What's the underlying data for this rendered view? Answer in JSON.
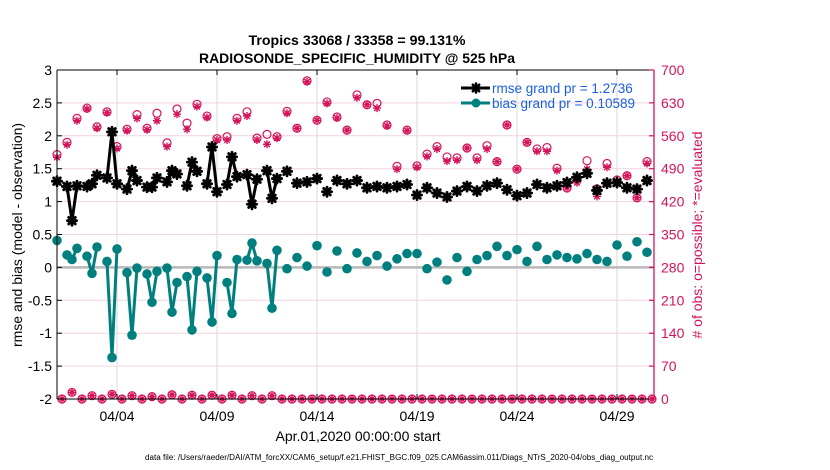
{
  "chart_data": {
    "type": "line",
    "title": [
      "Tropics 33068 / 33358 = 99.131%",
      "RADIOSONDE_SPECIFIC_HUMIDITY @ 525 hPa"
    ],
    "xlabel": "Apr.01,2020 00:00:00 start",
    "ylabel_left": "rmse and bias (model - observation)",
    "ylabel_right": "# of obs: o=possible; *=evaluated",
    "footer": "data file: /Users/raeder/DAI/ATM_forcXX/CAM6_setup/f.e21.FHIST_BGC.f09_025.CAM6assim.011/Diags_NTrS_2020-04/obs_diag_output.nc",
    "x_units": "days since Apr.01,2020 00:00:00",
    "xlim": [
      0,
      29.85
    ],
    "ylim_left": [
      -2,
      3
    ],
    "ylim_right": [
      0,
      700
    ],
    "grid": true,
    "zero_line": 0,
    "legend_position": "top-right",
    "x_ticks": [
      {
        "value": 3,
        "label": "04/04"
      },
      {
        "value": 8,
        "label": "04/09"
      },
      {
        "value": 13,
        "label": "04/14"
      },
      {
        "value": 18,
        "label": "04/19"
      },
      {
        "value": 23,
        "label": "04/24"
      },
      {
        "value": 28,
        "label": "04/29"
      }
    ],
    "y_ticks_left": [
      {
        "value": 3,
        "label": "3"
      },
      {
        "value": 2.5,
        "label": "2.5"
      },
      {
        "value": 2,
        "label": "2"
      },
      {
        "value": 1.5,
        "label": "1.5"
      },
      {
        "value": 1,
        "label": "1"
      },
      {
        "value": 0.5,
        "label": "0.5"
      },
      {
        "value": 0,
        "label": "0"
      },
      {
        "value": -0.5,
        "label": "-0.5"
      },
      {
        "value": -1,
        "label": "-1"
      },
      {
        "value": -1.5,
        "label": "-1.5"
      },
      {
        "value": -2,
        "label": "-2"
      }
    ],
    "y_ticks_right": [
      {
        "value": 700,
        "label": "700"
      },
      {
        "value": 630,
        "label": "630"
      },
      {
        "value": 560,
        "label": "560"
      },
      {
        "value": 490,
        "label": "490"
      },
      {
        "value": 420,
        "label": "420"
      },
      {
        "value": 350,
        "label": "350"
      },
      {
        "value": 280,
        "label": "280"
      },
      {
        "value": 210,
        "label": "210"
      },
      {
        "value": 140,
        "label": "140"
      },
      {
        "value": 70,
        "label": "70"
      },
      {
        "value": 0,
        "label": "0"
      }
    ],
    "x": [
      0,
      0.25,
      0.5,
      0.75,
      1,
      1.25,
      1.5,
      1.75,
      2,
      2.25,
      2.5,
      2.75,
      3,
      3.25,
      3.5,
      3.75,
      4,
      4.25,
      4.5,
      4.75,
      5,
      5.25,
      5.5,
      5.75,
      6,
      6.25,
      6.5,
      6.75,
      7,
      7.25,
      7.5,
      7.75,
      8,
      8.25,
      8.5,
      8.75,
      9,
      9.25,
      9.5,
      9.75,
      10,
      10.25,
      10.5,
      10.75,
      11,
      11.25,
      11.5,
      11.75,
      12,
      12.25,
      12.5,
      12.75,
      13,
      13.25,
      13.5,
      13.75,
      14,
      14.25,
      14.5,
      14.75,
      15,
      15.25,
      15.5,
      15.75,
      16,
      16.25,
      16.5,
      16.75,
      17,
      17.25,
      17.5,
      17.75,
      18,
      18.25,
      18.5,
      18.75,
      19,
      19.25,
      19.5,
      19.75,
      20,
      20.25,
      20.5,
      20.75,
      21,
      21.25,
      21.5,
      21.75,
      22,
      22.25,
      22.5,
      22.75,
      23,
      23.25,
      23.5,
      23.75,
      24,
      24.25,
      24.5,
      24.75,
      25,
      25.25,
      25.5,
      25.75,
      26,
      26.25,
      26.5,
      26.75,
      27,
      27.25,
      27.5,
      27.75,
      28,
      28.25,
      28.5,
      28.75,
      29,
      29.25,
      29.5,
      29.75
    ],
    "series": [
      {
        "name": "rmse grand pr = 1.2736",
        "axis": "left",
        "color": "#000000",
        "marker": "asterisk",
        "in_legend": true,
        "values": [
          1.31,
          null,
          1.23,
          0.71,
          1.24,
          null,
          1.23,
          1.27,
          1.4,
          null,
          1.36,
          2.06,
          1.27,
          null,
          1.19,
          1.47,
          1.32,
          null,
          1.22,
          1.22,
          1.36,
          null,
          1.3,
          1.47,
          1.42,
          null,
          1.24,
          1.6,
          1.46,
          null,
          1.27,
          1.83,
          1.15,
          null,
          1.26,
          1.68,
          1.38,
          null,
          1.41,
          0.96,
          1.34,
          null,
          1.47,
          1.05,
          1.35,
          null,
          1.46,
          null,
          1.28,
          null,
          1.3,
          null,
          1.35,
          null,
          1.15,
          null,
          1.32,
          null,
          1.27,
          null,
          1.32,
          null,
          1.21,
          null,
          1.23,
          null,
          1.21,
          null,
          1.23,
          null,
          1.26,
          null,
          1.1,
          null,
          1.21,
          null,
          1.13,
          null,
          1.07,
          null,
          1.16,
          null,
          1.23,
          null,
          1.16,
          null,
          1.24,
          null,
          1.28,
          null,
          1.18,
          null,
          1.09,
          null,
          1.13,
          null,
          1.26,
          null,
          1.21,
          null,
          1.24,
          null,
          1.29,
          null,
          1.37,
          null,
          1.43,
          null,
          1.17,
          null,
          1.28,
          null,
          1.29,
          null,
          1.21,
          null,
          1.19,
          null,
          1.32,
          null
        ]
      },
      {
        "name": "bias grand pr = 0.10589",
        "axis": "left",
        "color": "#007f7f",
        "marker": "circle",
        "in_legend": true,
        "values": [
          0.41,
          null,
          0.19,
          0.12,
          0.29,
          null,
          0.17,
          -0.09,
          0.31,
          null,
          0.09,
          -1.37,
          0.28,
          null,
          -0.08,
          -1.03,
          -0.01,
          null,
          -0.1,
          -0.53,
          -0.06,
          null,
          -0.01,
          -0.68,
          -0.23,
          null,
          -0.14,
          -0.95,
          -0.06,
          null,
          -0.16,
          -0.83,
          0.18,
          null,
          -0.23,
          -0.7,
          0.12,
          null,
          0.11,
          0.37,
          0.1,
          null,
          0.06,
          -0.62,
          0.26,
          null,
          -0.02,
          null,
          0.15,
          null,
          0.02,
          null,
          0.33,
          null,
          -0.07,
          null,
          0.25,
          null,
          -0.02,
          null,
          0.22,
          null,
          0.09,
          null,
          0.18,
          null,
          0.02,
          null,
          0.13,
          null,
          0.21,
          null,
          0.21,
          null,
          -0.02,
          null,
          0.08,
          null,
          -0.19,
          null,
          0.15,
          null,
          -0.06,
          null,
          0.12,
          null,
          0.18,
          null,
          0.32,
          null,
          0.18,
          null,
          0.27,
          null,
          0.09,
          null,
          0.32,
          null,
          0.12,
          null,
          0.19,
          null,
          0.15,
          null,
          0.13,
          null,
          0.21,
          null,
          0.12,
          null,
          0.09,
          null,
          0.34,
          null,
          0.17,
          null,
          0.39,
          null,
          0.23,
          null
        ]
      },
      {
        "name": "# obs possible",
        "axis": "right",
        "color": "#d4135a",
        "marker": "open-circle",
        "in_legend": false,
        "values": [
          520,
          0,
          546,
          14,
          597,
          0,
          619,
          7,
          579,
          0,
          611,
          10,
          537,
          0,
          574,
          7,
          605,
          0,
          576,
          5,
          608,
          0,
          545,
          9,
          617,
          0,
          587,
          8,
          627,
          0,
          602,
          8,
          554,
          0,
          558,
          8,
          597,
          0,
          611,
          7,
          555,
          0,
          563,
          7,
          558,
          0,
          612,
          0,
          576,
          0,
          677,
          0,
          593,
          0,
          632,
          0,
          600,
          0,
          572,
          0,
          647,
          0,
          626,
          0,
          629,
          0,
          583,
          0,
          495,
          0,
          572,
          0,
          496,
          0,
          521,
          0,
          537,
          0,
          515,
          0,
          513,
          0,
          534,
          0,
          513,
          0,
          539,
          0,
          505,
          0,
          583,
          0,
          489,
          0,
          546,
          0,
          532,
          0,
          535,
          0,
          491,
          0,
          449,
          0,
          468,
          0,
          507,
          0,
          447,
          0,
          501,
          0,
          466,
          0,
          475,
          0,
          428,
          0,
          505,
          0
        ]
      },
      {
        "name": "# obs evaluated",
        "axis": "right",
        "color": "#d4135a",
        "marker": "asterisk",
        "in_legend": false,
        "values": [
          514,
          0,
          541,
          14,
          592,
          0,
          617,
          7,
          576,
          0,
          609,
          10,
          533,
          0,
          571,
          7,
          597,
          0,
          573,
          5,
          592,
          0,
          537,
          9,
          606,
          0,
          574,
          8,
          622,
          0,
          599,
          8,
          551,
          0,
          551,
          8,
          592,
          0,
          602,
          7,
          551,
          0,
          542,
          7,
          555,
          0,
          608,
          0,
          576,
          0,
          675,
          0,
          593,
          0,
          629,
          0,
          598,
          0,
          572,
          0,
          641,
          0,
          626,
          0,
          619,
          0,
          581,
          0,
          489,
          0,
          571,
          0,
          493,
          0,
          516,
          0,
          532,
          0,
          506,
          0,
          508,
          0,
          534,
          0,
          508,
          0,
          532,
          0,
          505,
          0,
          583,
          0,
          489,
          0,
          546,
          0,
          527,
          0,
          527,
          0,
          486,
          0,
          449,
          0,
          460,
          0,
          489,
          0,
          431,
          0,
          493,
          0,
          462,
          0,
          475,
          0,
          428,
          0,
          501,
          0
        ]
      }
    ],
    "colors": {
      "left_axis": "#000000",
      "right_axis": "#d4135a",
      "legend_text": "#1a5fe0",
      "zero_line": "#b8b8b8",
      "grid_horizontal": "#f1d3de",
      "grid_vertical": "#dadada"
    }
  }
}
